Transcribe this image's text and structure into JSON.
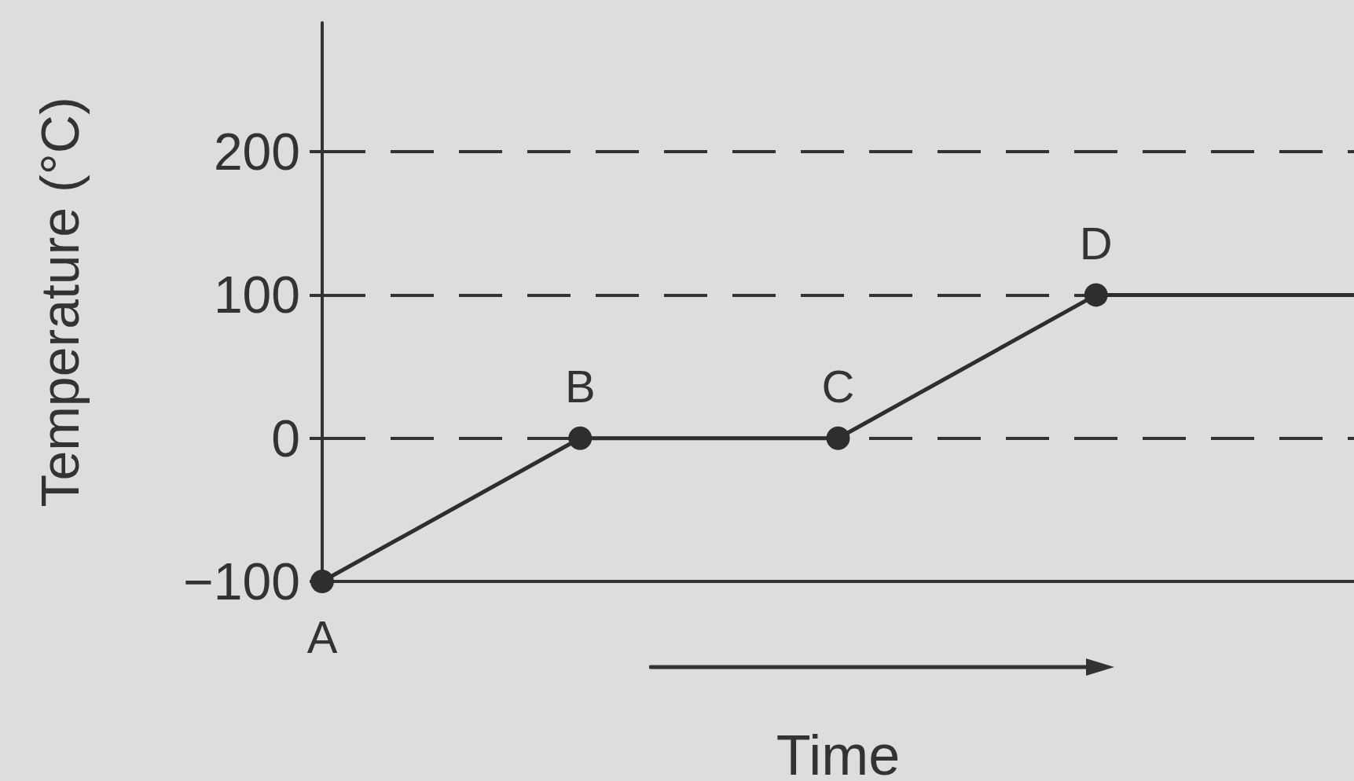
{
  "chart_data": {
    "type": "line",
    "xlabel": "Time",
    "ylabel": "Temperature (°C)",
    "categories": [
      null,
      null,
      null,
      null,
      null
    ],
    "values": [
      -100,
      0,
      0,
      100,
      100
    ],
    "color": "#2e2e2e",
    "value_labels": [
      "A",
      "B",
      "C",
      "D",
      null
    ],
    "ylim": [
      -100,
      290
    ],
    "yticks": [
      -100,
      0,
      100,
      200
    ],
    "grid": "y",
    "marker": "circle",
    "line_style": "solid",
    "tick_labels": "y"
  }
}
